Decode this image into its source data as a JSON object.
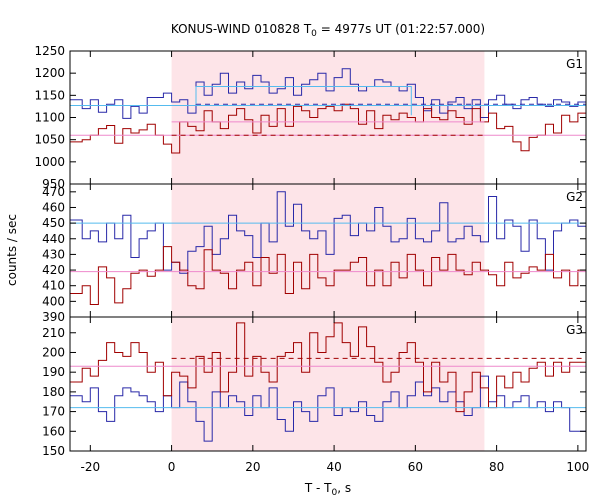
{
  "title": {
    "prefix": "KONUS-WIND 010828 T",
    "sub": "0",
    "suffix": " = 4977s UT (01:22:57.000)"
  },
  "xlabel": {
    "prefix": "T - T",
    "sub": "0",
    "suffix": ", s"
  },
  "ylabel": "counts / sec",
  "x_tick_labels": [
    "-20",
    "0",
    "20",
    "40",
    "60",
    "80",
    "100"
  ],
  "colors": {
    "blue": "#2828a8",
    "red": "#a00000",
    "cyan": "#55bbee",
    "pink": "#ee88cc",
    "shade": "#fde4e8"
  },
  "chart_data": [
    {
      "type": "line",
      "panel_label": "G1",
      "xlim": [
        -25,
        102
      ],
      "ylim": [
        950,
        1250
      ],
      "y_ticks": [
        950,
        1000,
        1050,
        1100,
        1150,
        1200,
        1250
      ],
      "shaded_interval": [
        0,
        77
      ],
      "series": [
        {
          "color": "blue",
          "style": "step",
          "x": [
            -25,
            -22,
            -20,
            -18,
            -16,
            -14,
            -12,
            -10,
            -8,
            -6,
            -4,
            -2,
            0,
            2,
            4,
            6,
            8,
            10,
            12,
            14,
            16,
            18,
            20,
            22,
            24,
            26,
            28,
            30,
            32,
            34,
            36,
            38,
            40,
            42,
            44,
            46,
            48,
            50,
            52,
            54,
            56,
            58,
            60,
            62,
            64,
            66,
            68,
            70,
            72,
            74,
            76,
            78,
            80,
            82,
            84,
            86,
            88,
            90,
            92,
            94,
            96,
            98,
            100,
            102
          ],
          "y": [
            1140,
            1120,
            1140,
            1112,
            1130,
            1140,
            1098,
            1125,
            1110,
            1145,
            1145,
            1155,
            1135,
            1140,
            1110,
            1180,
            1150,
            1175,
            1200,
            1155,
            1180,
            1165,
            1195,
            1180,
            1155,
            1165,
            1190,
            1150,
            1175,
            1185,
            1200,
            1160,
            1190,
            1210,
            1175,
            1160,
            1170,
            1185,
            1180,
            1170,
            1160,
            1175,
            1145,
            1115,
            1140,
            1110,
            1135,
            1145,
            1120,
            1140,
            1100,
            1140,
            1150,
            1130,
            1120,
            1140,
            1145,
            1130,
            1125,
            1140,
            1135,
            1125,
            1135,
            1135
          ]
        },
        {
          "color": "red",
          "style": "step",
          "x": [
            -25,
            -22,
            -20,
            -18,
            -16,
            -14,
            -12,
            -10,
            -8,
            -6,
            -4,
            -2,
            0,
            2,
            4,
            6,
            8,
            10,
            12,
            14,
            16,
            18,
            20,
            22,
            24,
            26,
            28,
            30,
            32,
            34,
            36,
            38,
            40,
            42,
            44,
            46,
            48,
            50,
            52,
            54,
            56,
            58,
            60,
            62,
            64,
            66,
            68,
            70,
            72,
            74,
            76,
            78,
            80,
            82,
            84,
            86,
            88,
            90,
            92,
            94,
            96,
            98,
            100,
            102
          ],
          "y": [
            1045,
            1050,
            1060,
            1075,
            1082,
            1042,
            1075,
            1065,
            1072,
            1085,
            1060,
            1040,
            1020,
            1090,
            1080,
            1070,
            1115,
            1090,
            1075,
            1105,
            1120,
            1095,
            1065,
            1105,
            1080,
            1120,
            1080,
            1125,
            1115,
            1100,
            1120,
            1125,
            1115,
            1130,
            1120,
            1085,
            1115,
            1075,
            1105,
            1095,
            1110,
            1100,
            1090,
            1120,
            1100,
            1095,
            1115,
            1100,
            1085,
            1120,
            1090,
            1110,
            1075,
            1080,
            1045,
            1025,
            1055,
            1060,
            1085,
            1065,
            1105,
            1090,
            1110,
            1110
          ]
        },
        {
          "color": "cyan",
          "style": "solid",
          "x": [
            -25,
            102
          ],
          "y": [
            1127,
            1127
          ]
        },
        {
          "color": "pink",
          "style": "solid",
          "x": [
            -25,
            102
          ],
          "y": [
            1060,
            1060
          ]
        },
        {
          "color": "cyan",
          "style": "solid",
          "x": [
            6,
            59,
            59
          ],
          "y": [
            1170,
            1170,
            1105
          ]
        },
        {
          "color": "blue",
          "style": "dashed",
          "x": [
            6,
            102
          ],
          "y": [
            1130,
            1130
          ]
        },
        {
          "color": "red",
          "style": "dashed",
          "x": [
            0,
            77
          ],
          "y": [
            1060,
            1060
          ]
        },
        {
          "color": "pink",
          "style": "solid",
          "x": [
            0,
            77
          ],
          "y": [
            1090,
            1090
          ]
        },
        {
          "color": "cyan",
          "style": "solid",
          "x": [
            6,
            6
          ],
          "y": [
            1130,
            1170
          ]
        }
      ]
    },
    {
      "type": "line",
      "panel_label": "G2",
      "xlim": [
        -25,
        102
      ],
      "ylim": [
        390,
        475
      ],
      "y_ticks": [
        390,
        400,
        410,
        420,
        430,
        440,
        450,
        460,
        470
      ],
      "shaded_interval": [
        0,
        77
      ],
      "series": [
        {
          "color": "blue",
          "style": "step",
          "x": [
            -25,
            -22,
            -20,
            -18,
            -16,
            -14,
            -12,
            -10,
            -8,
            -6,
            -4,
            -2,
            0,
            2,
            4,
            6,
            8,
            10,
            12,
            14,
            16,
            18,
            20,
            22,
            24,
            26,
            28,
            30,
            32,
            34,
            36,
            38,
            40,
            42,
            44,
            46,
            48,
            50,
            52,
            54,
            56,
            58,
            60,
            62,
            64,
            66,
            68,
            70,
            72,
            74,
            76,
            78,
            80,
            82,
            84,
            86,
            88,
            90,
            92,
            94,
            96,
            98,
            100,
            102
          ],
          "y": [
            452,
            440,
            445,
            438,
            450,
            440,
            455,
            428,
            440,
            445,
            450,
            420,
            425,
            418,
            432,
            435,
            448,
            430,
            440,
            455,
            445,
            442,
            428,
            450,
            438,
            470,
            448,
            462,
            445,
            440,
            445,
            430,
            453,
            455,
            442,
            450,
            445,
            460,
            448,
            438,
            440,
            453,
            440,
            438,
            445,
            463,
            438,
            440,
            448,
            442,
            438,
            467,
            440,
            452,
            448,
            432,
            452,
            440,
            420,
            445,
            450,
            452,
            448,
            448
          ]
        },
        {
          "color": "red",
          "style": "step",
          "x": [
            -25,
            -22,
            -20,
            -18,
            -16,
            -14,
            -12,
            -10,
            -8,
            -6,
            -4,
            -2,
            0,
            2,
            4,
            6,
            8,
            10,
            12,
            14,
            16,
            18,
            20,
            22,
            24,
            26,
            28,
            30,
            32,
            34,
            36,
            38,
            40,
            42,
            44,
            46,
            48,
            50,
            52,
            54,
            56,
            58,
            60,
            62,
            64,
            66,
            68,
            70,
            72,
            74,
            76,
            78,
            80,
            82,
            84,
            86,
            88,
            90,
            92,
            94,
            96,
            98,
            100,
            102
          ],
          "y": [
            405,
            410,
            398,
            422,
            415,
            399,
            408,
            418,
            420,
            416,
            420,
            435,
            425,
            420,
            410,
            408,
            433,
            420,
            418,
            408,
            420,
            425,
            410,
            428,
            418,
            430,
            405,
            425,
            408,
            430,
            415,
            410,
            420,
            420,
            425,
            428,
            410,
            420,
            410,
            425,
            415,
            430,
            420,
            410,
            428,
            420,
            430,
            420,
            417,
            425,
            420,
            417,
            410,
            425,
            415,
            418,
            422,
            420,
            430,
            415,
            420,
            410,
            420,
            420
          ]
        },
        {
          "color": "cyan",
          "style": "solid",
          "x": [
            -25,
            102
          ],
          "y": [
            450,
            450
          ]
        },
        {
          "color": "pink",
          "style": "solid",
          "x": [
            -25,
            102
          ],
          "y": [
            419,
            419
          ]
        }
      ]
    },
    {
      "type": "line",
      "panel_label": "G3",
      "xlim": [
        -25,
        102
      ],
      "ylim": [
        150,
        218
      ],
      "y_ticks": [
        150,
        160,
        170,
        180,
        190,
        200,
        210
      ],
      "shaded_interval": [
        0,
        77
      ],
      "series": [
        {
          "color": "blue",
          "style": "step",
          "x": [
            -25,
            -22,
            -20,
            -18,
            -16,
            -14,
            -12,
            -10,
            -8,
            -6,
            -4,
            -2,
            0,
            2,
            4,
            6,
            8,
            10,
            12,
            14,
            16,
            18,
            20,
            22,
            24,
            26,
            28,
            30,
            32,
            34,
            36,
            38,
            40,
            42,
            44,
            46,
            48,
            50,
            52,
            54,
            56,
            58,
            60,
            62,
            64,
            66,
            68,
            70,
            72,
            74,
            76,
            78,
            80,
            82,
            84,
            86,
            88,
            90,
            92,
            94,
            96,
            98,
            100,
            102
          ],
          "y": [
            178,
            175,
            182,
            170,
            165,
            178,
            182,
            180,
            178,
            175,
            170,
            178,
            172,
            185,
            175,
            165,
            155,
            180,
            172,
            178,
            175,
            168,
            178,
            172,
            182,
            166,
            160,
            175,
            170,
            165,
            178,
            182,
            168,
            172,
            170,
            175,
            168,
            165,
            175,
            180,
            172,
            178,
            185,
            178,
            182,
            175,
            180,
            175,
            168,
            172,
            188,
            175,
            178,
            172,
            175,
            178,
            172,
            175,
            170,
            175,
            172,
            160,
            160,
            160
          ]
        },
        {
          "color": "red",
          "style": "step",
          "x": [
            -25,
            -22,
            -20,
            -18,
            -16,
            -14,
            -12,
            -10,
            -8,
            -6,
            -4,
            -2,
            0,
            2,
            4,
            6,
            8,
            10,
            12,
            14,
            16,
            18,
            20,
            22,
            24,
            26,
            28,
            30,
            32,
            34,
            36,
            38,
            40,
            42,
            44,
            46,
            48,
            50,
            52,
            54,
            56,
            58,
            60,
            62,
            64,
            66,
            68,
            70,
            72,
            74,
            76,
            78,
            80,
            82,
            84,
            86,
            88,
            90,
            92,
            94,
            96,
            98,
            100,
            102
          ],
          "y": [
            185,
            192,
            188,
            196,
            205,
            200,
            198,
            205,
            200,
            190,
            195,
            178,
            190,
            188,
            182,
            198,
            190,
            200,
            180,
            190,
            215,
            188,
            198,
            190,
            185,
            198,
            200,
            205,
            190,
            210,
            200,
            208,
            215,
            205,
            198,
            213,
            203,
            195,
            185,
            190,
            200,
            205,
            195,
            180,
            195,
            185,
            190,
            170,
            180,
            190,
            182,
            172,
            188,
            182,
            190,
            185,
            192,
            195,
            188,
            195,
            190,
            195,
            195,
            195
          ]
        },
        {
          "color": "cyan",
          "style": "solid",
          "x": [
            -25,
            102
          ],
          "y": [
            172,
            172
          ]
        },
        {
          "color": "pink",
          "style": "solid",
          "x": [
            -25,
            102
          ],
          "y": [
            193,
            193
          ]
        },
        {
          "color": "red",
          "style": "dashed",
          "x": [
            0,
            102
          ],
          "y": [
            197,
            197
          ]
        }
      ]
    }
  ]
}
